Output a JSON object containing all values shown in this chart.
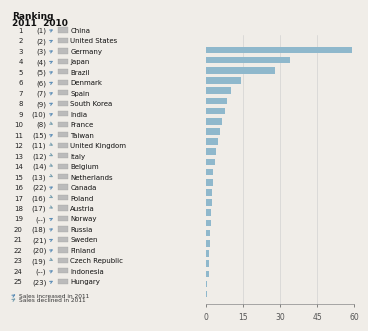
{
  "countries": [
    "China",
    "United States",
    "Germany",
    "Japan",
    "Brazil",
    "Denmark",
    "Spain",
    "South Korea",
    "India",
    "France",
    "Taiwan",
    "United Kingdom",
    "Italy",
    "Belgium",
    "Netherlands",
    "Canada",
    "Poland",
    "Austria",
    "Norway",
    "Russia",
    "Sweden",
    "Finland",
    "Czech Republic",
    "Indonesia",
    "Hungary"
  ],
  "rank_2011": [
    "1",
    "2",
    "3",
    "4",
    "5",
    "6",
    "7",
    "8",
    "9",
    "10",
    "11",
    "12",
    "13",
    "14",
    "15",
    "16",
    "17",
    "18",
    "19",
    "20",
    "21",
    "22",
    "23",
    "24",
    "25"
  ],
  "rank_2010": [
    "(1)",
    "(2)",
    "(3)",
    "(4)",
    "(5)",
    "(6)",
    "(7)",
    "(9)",
    "(10)",
    "(8)",
    "(15)",
    "(11)",
    "(12)",
    "(14)",
    "(13)",
    "(22)",
    "(16)",
    "(17)",
    "(--)",
    "(18)",
    "(21)",
    "(20)",
    "(19)",
    "(--)",
    "(23)"
  ],
  "values": [
    59,
    34,
    28,
    14,
    10,
    8.5,
    7.5,
    6.5,
    5.5,
    5.0,
    4.0,
    3.5,
    3.0,
    2.8,
    2.5,
    2.2,
    2.0,
    1.8,
    1.6,
    1.4,
    1.2,
    1.1,
    1.0,
    0.5,
    0.4
  ],
  "increased": [
    true,
    true,
    true,
    true,
    true,
    true,
    true,
    true,
    true,
    false,
    true,
    false,
    false,
    false,
    false,
    true,
    false,
    false,
    true,
    true,
    true,
    true,
    false,
    true,
    true
  ],
  "bar_color": "#8fb8cc",
  "arrow_up_color": "#6090b8",
  "arrow_down_color": "#7aa0b0",
  "bg_color": "#f0ede8",
  "xlim": [
    0,
    60
  ],
  "xticks": [
    0,
    15,
    30,
    45,
    60
  ],
  "legend_up": "Sales increased in 2011",
  "legend_down": "Sales declined in 2011"
}
